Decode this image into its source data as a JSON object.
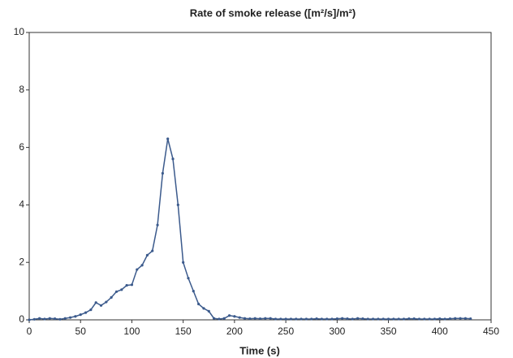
{
  "chart_data": {
    "type": "line",
    "title": "Rate of smoke release ([m²/s]/m²)",
    "x_label": "Time (s)",
    "x": [
      0,
      5,
      10,
      15,
      20,
      25,
      30,
      35,
      40,
      45,
      50,
      55,
      60,
      65,
      70,
      75,
      80,
      85,
      90,
      95,
      100,
      105,
      110,
      115,
      120,
      125,
      130,
      135,
      140,
      145,
      150,
      155,
      160,
      165,
      170,
      175,
      180,
      185,
      190,
      195,
      200,
      205,
      210,
      215,
      220,
      225,
      230,
      235,
      240,
      245,
      250,
      255,
      260,
      265,
      270,
      275,
      280,
      285,
      290,
      295,
      300,
      305,
      310,
      315,
      320,
      325,
      330,
      335,
      340,
      345,
      350,
      355,
      360,
      365,
      370,
      375,
      380,
      385,
      390,
      395,
      400,
      405,
      410,
      415,
      420,
      425,
      430
    ],
    "series": [
      {
        "color": "#3b5a8c",
        "values": [
          0,
          0.02,
          0.05,
          0.03,
          0.05,
          0.04,
          0.02,
          0.05,
          0.08,
          0.12,
          0.18,
          0.25,
          0.35,
          0.6,
          0.5,
          0.62,
          0.78,
          0.98,
          1.05,
          1.2,
          1.22,
          1.75,
          1.9,
          2.25,
          2.4,
          3.3,
          5.1,
          6.3,
          5.6,
          4.0,
          2.0,
          1.45,
          1.0,
          0.55,
          0.4,
          0.3,
          0.05,
          0.03,
          0.05,
          0.15,
          0.12,
          0.08,
          0.05,
          0.04,
          0.05,
          0.04,
          0.05,
          0.05,
          0.03,
          0.03,
          0.03,
          0.03,
          0.03,
          0.03,
          0.03,
          0.03,
          0.04,
          0.03,
          0.03,
          0.03,
          0.04,
          0.05,
          0.04,
          0.03,
          0.05,
          0.04,
          0.03,
          0.03,
          0.03,
          0.03,
          0.03,
          0.03,
          0.03,
          0.03,
          0.04,
          0.04,
          0.03,
          0.03,
          0.03,
          0.03,
          0.04,
          0.03,
          0.04,
          0.05,
          0.05,
          0.05,
          0.04
        ]
      }
    ],
    "xlim": [
      0,
      450
    ],
    "xticks": [
      0,
      50,
      100,
      150,
      200,
      250,
      300,
      350,
      400,
      450
    ],
    "ylim": [
      0,
      10
    ],
    "yticks": [
      0,
      2,
      4,
      6,
      8,
      10
    ]
  }
}
